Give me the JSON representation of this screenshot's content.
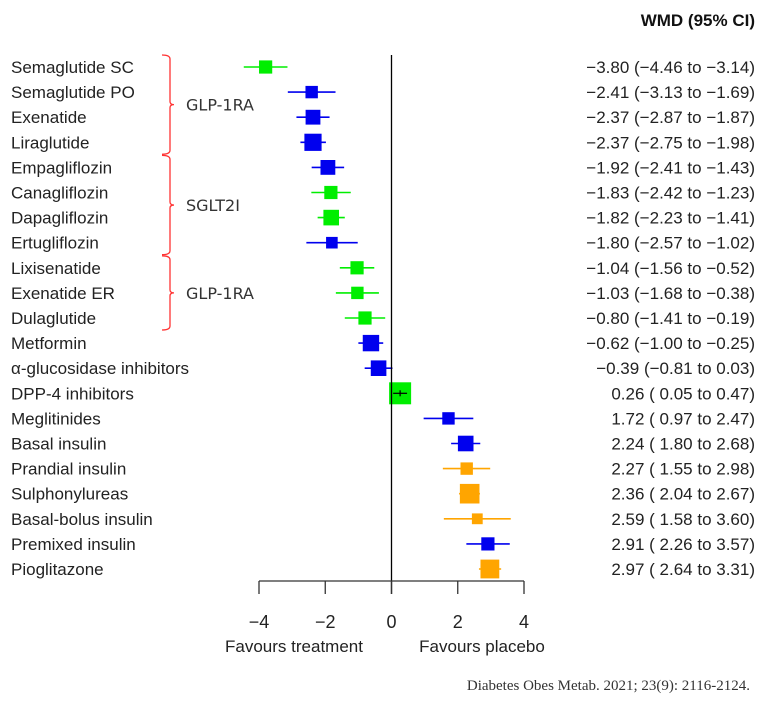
{
  "chart_data": {
    "type": "forest",
    "column_header": "WMD (95% CI)",
    "xlim": [
      -4,
      4
    ],
    "xticks": [
      -4,
      -2,
      0,
      2,
      4
    ],
    "xtick_labels": [
      "−4",
      "−2",
      "0",
      "2",
      "4"
    ],
    "reference_line": 0,
    "xlabel_left": "Favours treatment",
    "xlabel_right": "Favours placebo",
    "colors": {
      "green": "#00ee00",
      "blue": "#0000ee",
      "orange": "#ffa500",
      "bracket": "#ff3333"
    },
    "rows": [
      {
        "label": "Semaglutide SC",
        "est": -3.8,
        "lo": -4.46,
        "hi": -3.14,
        "color": "green",
        "weight": 0.45,
        "text": "−3.80 (−4.46 to −3.14)"
      },
      {
        "label": "Semaglutide PO",
        "est": -2.41,
        "lo": -3.13,
        "hi": -1.69,
        "color": "blue",
        "weight": 0.4,
        "text": "−2.41 (−3.13 to −1.69)"
      },
      {
        "label": "Exenatide",
        "est": -2.37,
        "lo": -2.87,
        "hi": -1.87,
        "color": "blue",
        "weight": 0.55,
        "text": "−2.37 (−2.87 to −1.87)"
      },
      {
        "label": "Liraglutide",
        "est": -2.37,
        "lo": -2.75,
        "hi": -1.98,
        "color": "blue",
        "weight": 0.7,
        "text": "−2.37 (−2.75 to −1.98)"
      },
      {
        "label": "Empagliflozin",
        "est": -1.92,
        "lo": -2.41,
        "hi": -1.43,
        "color": "blue",
        "weight": 0.55,
        "text": "−1.92 (−2.41 to −1.43)"
      },
      {
        "label": "Canagliflozin",
        "est": -1.83,
        "lo": -2.42,
        "hi": -1.23,
        "color": "green",
        "weight": 0.45,
        "text": "−1.83 (−2.42 to −1.23)"
      },
      {
        "label": "Dapagliflozin",
        "est": -1.82,
        "lo": -2.23,
        "hi": -1.41,
        "color": "green",
        "weight": 0.6,
        "text": "−1.82 (−2.23 to −1.41)"
      },
      {
        "label": "Ertugliflozin",
        "est": -1.8,
        "lo": -2.57,
        "hi": -1.02,
        "color": "blue",
        "weight": 0.35,
        "text": "−1.80 (−2.57 to −1.02)"
      },
      {
        "label": "Lixisenatide",
        "est": -1.04,
        "lo": -1.56,
        "hi": -0.52,
        "color": "green",
        "weight": 0.45,
        "text": "−1.04 (−1.56 to −0.52)"
      },
      {
        "label": "Exenatide ER",
        "est": -1.03,
        "lo": -1.68,
        "hi": -0.38,
        "color": "green",
        "weight": 0.4,
        "text": "−1.03 (−1.68 to −0.38)"
      },
      {
        "label": "Dulaglutide",
        "est": -0.8,
        "lo": -1.41,
        "hi": -0.19,
        "color": "green",
        "weight": 0.45,
        "text": "−0.80 (−1.41 to −0.19)"
      },
      {
        "label": "Metformin",
        "est": -0.62,
        "lo": -1.0,
        "hi": -0.25,
        "color": "blue",
        "weight": 0.65,
        "text": "−0.62 (−1.00 to −0.25)"
      },
      {
        "label": "α-glucosidase inhibitors",
        "est": -0.39,
        "lo": -0.81,
        "hi": 0.03,
        "color": "blue",
        "weight": 0.6,
        "text": "−0.39 (−0.81 to  0.03)"
      },
      {
        "label": "DPP-4 inhibitors",
        "est": 0.26,
        "lo": 0.05,
        "hi": 0.47,
        "color": "green",
        "weight": 1.0,
        "text": "0.26 ( 0.05 to  0.47)"
      },
      {
        "label": "Meglitinides",
        "est": 1.72,
        "lo": 0.97,
        "hi": 2.47,
        "color": "blue",
        "weight": 0.4,
        "text": "1.72 ( 0.97 to  2.47)"
      },
      {
        "label": "Basal insulin",
        "est": 2.24,
        "lo": 1.8,
        "hi": 2.68,
        "color": "blue",
        "weight": 0.6,
        "text": "2.24 ( 1.80 to  2.68)"
      },
      {
        "label": "Prandial insulin",
        "est": 2.27,
        "lo": 1.55,
        "hi": 2.98,
        "color": "orange",
        "weight": 0.4,
        "text": "2.27 ( 1.55 to  2.98)"
      },
      {
        "label": "Sulphonylureas",
        "est": 2.36,
        "lo": 2.04,
        "hi": 2.67,
        "color": "orange",
        "weight": 0.85,
        "text": "2.36 ( 2.04 to  2.67)"
      },
      {
        "label": "Basal-bolus insulin",
        "est": 2.59,
        "lo": 1.58,
        "hi": 3.6,
        "color": "orange",
        "weight": 0.3,
        "text": "2.59 ( 1.58 to  3.60)"
      },
      {
        "label": "Premixed insulin",
        "est": 2.91,
        "lo": 2.26,
        "hi": 3.57,
        "color": "blue",
        "weight": 0.45,
        "text": "2.91 ( 2.26 to  3.57)"
      },
      {
        "label": "Pioglitazone",
        "est": 2.97,
        "lo": 2.64,
        "hi": 3.31,
        "color": "orange",
        "weight": 0.8,
        "text": "2.97 ( 2.64 to  3.31)"
      }
    ],
    "groups": [
      {
        "label": "GLP-1RA",
        "from_row": 0,
        "to_row": 3
      },
      {
        "label": "SGLT2I",
        "from_row": 4,
        "to_row": 7
      },
      {
        "label": "GLP-1RA",
        "from_row": 8,
        "to_row": 10
      }
    ]
  },
  "citation": "Diabetes Obes Metab. 2021; 23(9): 2116-2124."
}
